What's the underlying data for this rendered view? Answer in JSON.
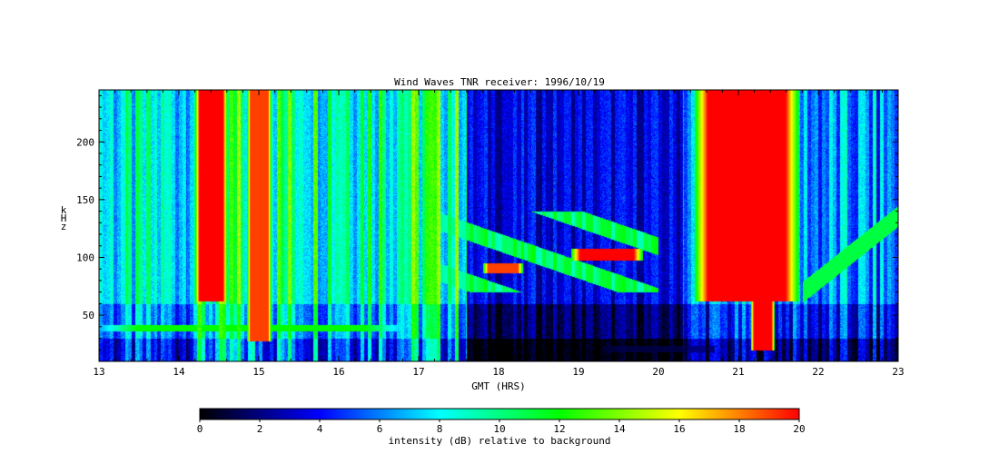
{
  "chart_data": [
    {
      "type": "heatmap",
      "title": "Wind Waves TNR receiver: 1996/10/19",
      "xlabel": "GMT (HRS)",
      "ylabel": "kHz",
      "xlim": [
        13,
        23
      ],
      "ylim": [
        10,
        245
      ],
      "x_ticks": [
        "13",
        "14",
        "15",
        "16",
        "17",
        "18",
        "19",
        "20",
        "21",
        "22",
        "23"
      ],
      "y_ticks": [
        "50",
        "100",
        "150",
        "200"
      ],
      "grid": false,
      "features": [
        {
          "kind": "burst",
          "x0": 14.2,
          "x1": 14.6,
          "y0": 62,
          "y1": 245,
          "level": 20
        },
        {
          "kind": "burst",
          "x0": 14.85,
          "x1": 15.15,
          "y0": 28,
          "y1": 245,
          "level": 19
        },
        {
          "kind": "burst",
          "x0": 20.45,
          "x1": 21.75,
          "y0": 62,
          "y1": 245,
          "level": 20
        },
        {
          "kind": "burst",
          "x0": 21.15,
          "x1": 21.45,
          "y0": 20,
          "y1": 90,
          "level": 20
        },
        {
          "kind": "band",
          "x0": 18.9,
          "x1": 19.8,
          "y0": 98,
          "y1": 108,
          "level": 20
        },
        {
          "kind": "band",
          "x0": 17.8,
          "x1": 18.3,
          "y0": 87,
          "y1": 95,
          "level": 19
        },
        {
          "kind": "band",
          "x0": 13.0,
          "x1": 16.8,
          "y0": 36,
          "y1": 42,
          "level": 12
        },
        {
          "kind": "band",
          "x0": 19.3,
          "x1": 20.7,
          "y0": 18,
          "y1": 24,
          "level": 1
        }
      ]
    },
    {
      "type": "heatmap",
      "colorbar": true,
      "xlabel": "intensity (dB) relative to background",
      "xlim": [
        0,
        20
      ],
      "x_ticks": [
        "0",
        "2",
        "4",
        "6",
        "8",
        "10",
        "12",
        "14",
        "16",
        "18",
        "20"
      ],
      "colormap": [
        "#000000",
        "#0000ff",
        "#00ffff",
        "#00ff00",
        "#ffff00",
        "#ff0000"
      ]
    }
  ]
}
